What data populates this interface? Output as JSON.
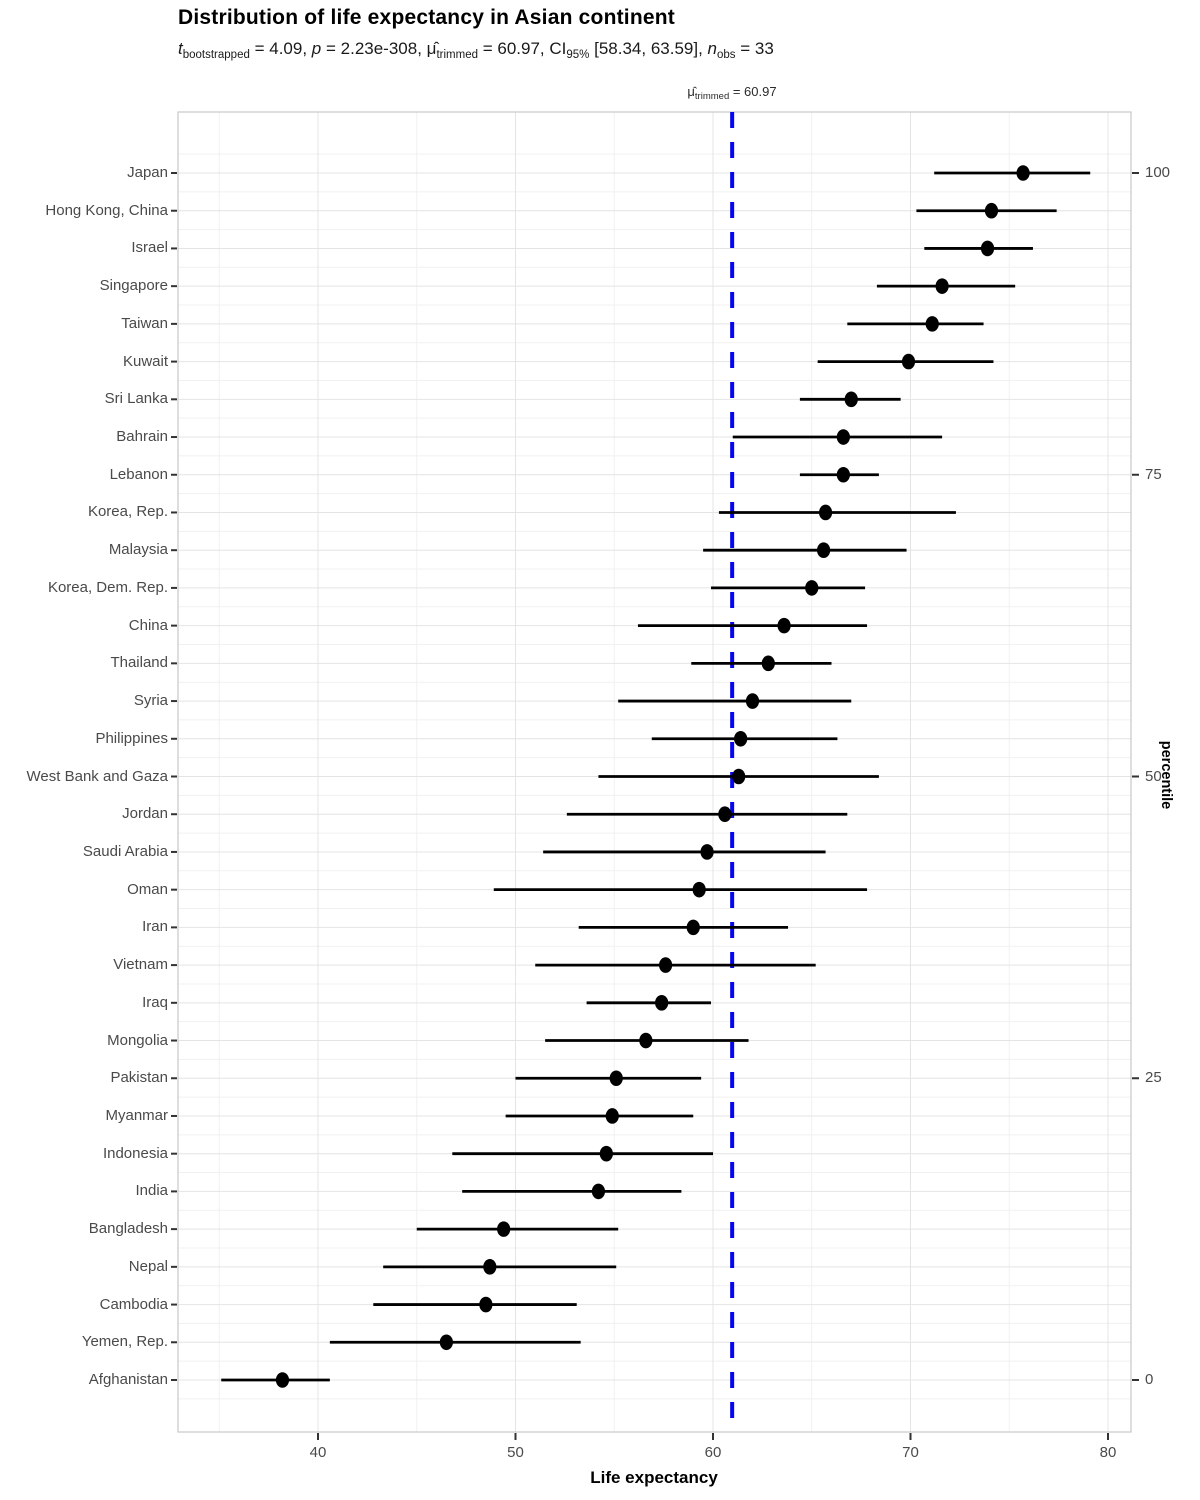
{
  "title": "Distribution of life expectancy in Asian continent",
  "subtitle": {
    "segments": [
      {
        "text": "t",
        "style": "italic"
      },
      {
        "text": "bootstrapped",
        "style": "sub"
      },
      {
        "text": " = 4.09, ",
        "style": "normal"
      },
      {
        "text": "p",
        "style": "italic"
      },
      {
        "text": " = 2.23e-308, ",
        "style": "normal"
      },
      {
        "text": "μ̂",
        "style": "normal"
      },
      {
        "text": "trimmed",
        "style": "sub"
      },
      {
        "text": " = 60.97, CI",
        "style": "normal"
      },
      {
        "text": "95%",
        "style": "sub"
      },
      {
        "text": " [58.34, 63.59], ",
        "style": "normal"
      },
      {
        "text": "n",
        "style": "italic"
      },
      {
        "text": "obs",
        "style": "sub"
      },
      {
        "text": " = 33",
        "style": "normal"
      }
    ]
  },
  "vline_label": {
    "segments": [
      {
        "text": "μ̂",
        "style": "normal"
      },
      {
        "text": "trimmed",
        "style": "sub"
      },
      {
        "text": " = 60.97",
        "style": "normal"
      }
    ]
  },
  "x_axis": {
    "title": "Life expectancy",
    "ticks": [
      40,
      50,
      60,
      70,
      80
    ]
  },
  "right_axis": {
    "title": "percentile",
    "ticks": [
      100,
      75,
      50,
      25,
      0
    ]
  },
  "colors": {
    "vline": "#0505EE",
    "point": "#000000",
    "interval": "#000000",
    "grid_major": "#e4e4e4",
    "grid_minor": "#f1f1f1",
    "panel_border": "#c9c9c9",
    "tick": "#333333",
    "axis_text": "#4a4a4a"
  },
  "chart_data": {
    "type": "scatter",
    "subtype": "dot-plot-with-intervals",
    "orientation": "horizontal",
    "title": "Distribution of life expectancy in Asian continent",
    "xlabel": "Life expectancy",
    "ylabel_right": "percentile",
    "xlim": [
      32.9,
      81.2
    ],
    "x_ticks": [
      40,
      50,
      60,
      70,
      80
    ],
    "percentile_ticks": [
      100,
      75,
      50,
      25,
      0
    ],
    "grid": true,
    "vline": {
      "value": 60.97,
      "color": "#0505EE",
      "style": "dashed"
    },
    "stats": {
      "t_bootstrapped": "4.09",
      "p": "2.23e-308",
      "mu_trimmed": "60.97",
      "ci_95": "[58.34, 63.59]",
      "n_obs": "33"
    },
    "series": [
      {
        "country": "Japan",
        "estimate": 75.7,
        "lower": 71.2,
        "upper": 79.1
      },
      {
        "country": "Hong Kong, China",
        "estimate": 74.1,
        "lower": 70.3,
        "upper": 77.4
      },
      {
        "country": "Israel",
        "estimate": 73.9,
        "lower": 70.7,
        "upper": 76.2
      },
      {
        "country": "Singapore",
        "estimate": 71.6,
        "lower": 68.3,
        "upper": 75.3
      },
      {
        "country": "Taiwan",
        "estimate": 71.1,
        "lower": 66.8,
        "upper": 73.7
      },
      {
        "country": "Kuwait",
        "estimate": 69.9,
        "lower": 65.3,
        "upper": 74.2
      },
      {
        "country": "Sri Lanka",
        "estimate": 67.0,
        "lower": 64.4,
        "upper": 69.5
      },
      {
        "country": "Bahrain",
        "estimate": 66.6,
        "lower": 61.0,
        "upper": 71.6
      },
      {
        "country": "Lebanon",
        "estimate": 66.6,
        "lower": 64.4,
        "upper": 68.4
      },
      {
        "country": "Korea, Rep.",
        "estimate": 65.7,
        "lower": 60.3,
        "upper": 72.3
      },
      {
        "country": "Malaysia",
        "estimate": 65.6,
        "lower": 59.5,
        "upper": 69.8
      },
      {
        "country": "Korea, Dem. Rep.",
        "estimate": 65.0,
        "lower": 59.9,
        "upper": 67.7
      },
      {
        "country": "China",
        "estimate": 63.6,
        "lower": 56.2,
        "upper": 67.8
      },
      {
        "country": "Thailand",
        "estimate": 62.8,
        "lower": 58.9,
        "upper": 66.0
      },
      {
        "country": "Syria",
        "estimate": 62.0,
        "lower": 55.2,
        "upper": 67.0
      },
      {
        "country": "Philippines",
        "estimate": 61.4,
        "lower": 56.9,
        "upper": 66.3
      },
      {
        "country": "West Bank and Gaza",
        "estimate": 61.3,
        "lower": 54.2,
        "upper": 68.4
      },
      {
        "country": "Jordan",
        "estimate": 60.6,
        "lower": 52.6,
        "upper": 66.8
      },
      {
        "country": "Saudi Arabia",
        "estimate": 59.7,
        "lower": 51.4,
        "upper": 65.7
      },
      {
        "country": "Oman",
        "estimate": 59.3,
        "lower": 48.9,
        "upper": 67.8
      },
      {
        "country": "Iran",
        "estimate": 59.0,
        "lower": 53.2,
        "upper": 63.8
      },
      {
        "country": "Vietnam",
        "estimate": 57.6,
        "lower": 51.0,
        "upper": 65.2
      },
      {
        "country": "Iraq",
        "estimate": 57.4,
        "lower": 53.6,
        "upper": 59.9
      },
      {
        "country": "Mongolia",
        "estimate": 56.6,
        "lower": 51.5,
        "upper": 61.8
      },
      {
        "country": "Pakistan",
        "estimate": 55.1,
        "lower": 50.0,
        "upper": 59.4
      },
      {
        "country": "Myanmar",
        "estimate": 54.9,
        "lower": 49.5,
        "upper": 59.0
      },
      {
        "country": "Indonesia",
        "estimate": 54.6,
        "lower": 46.8,
        "upper": 60.0
      },
      {
        "country": "India",
        "estimate": 54.2,
        "lower": 47.3,
        "upper": 58.4
      },
      {
        "country": "Bangladesh",
        "estimate": 49.4,
        "lower": 45.0,
        "upper": 55.2
      },
      {
        "country": "Nepal",
        "estimate": 48.7,
        "lower": 43.3,
        "upper": 55.1
      },
      {
        "country": "Cambodia",
        "estimate": 48.5,
        "lower": 42.8,
        "upper": 53.1
      },
      {
        "country": "Yemen, Rep.",
        "estimate": 46.5,
        "lower": 40.6,
        "upper": 53.3
      },
      {
        "country": "Afghanistan",
        "estimate": 38.2,
        "lower": 35.1,
        "upper": 40.6
      }
    ]
  }
}
